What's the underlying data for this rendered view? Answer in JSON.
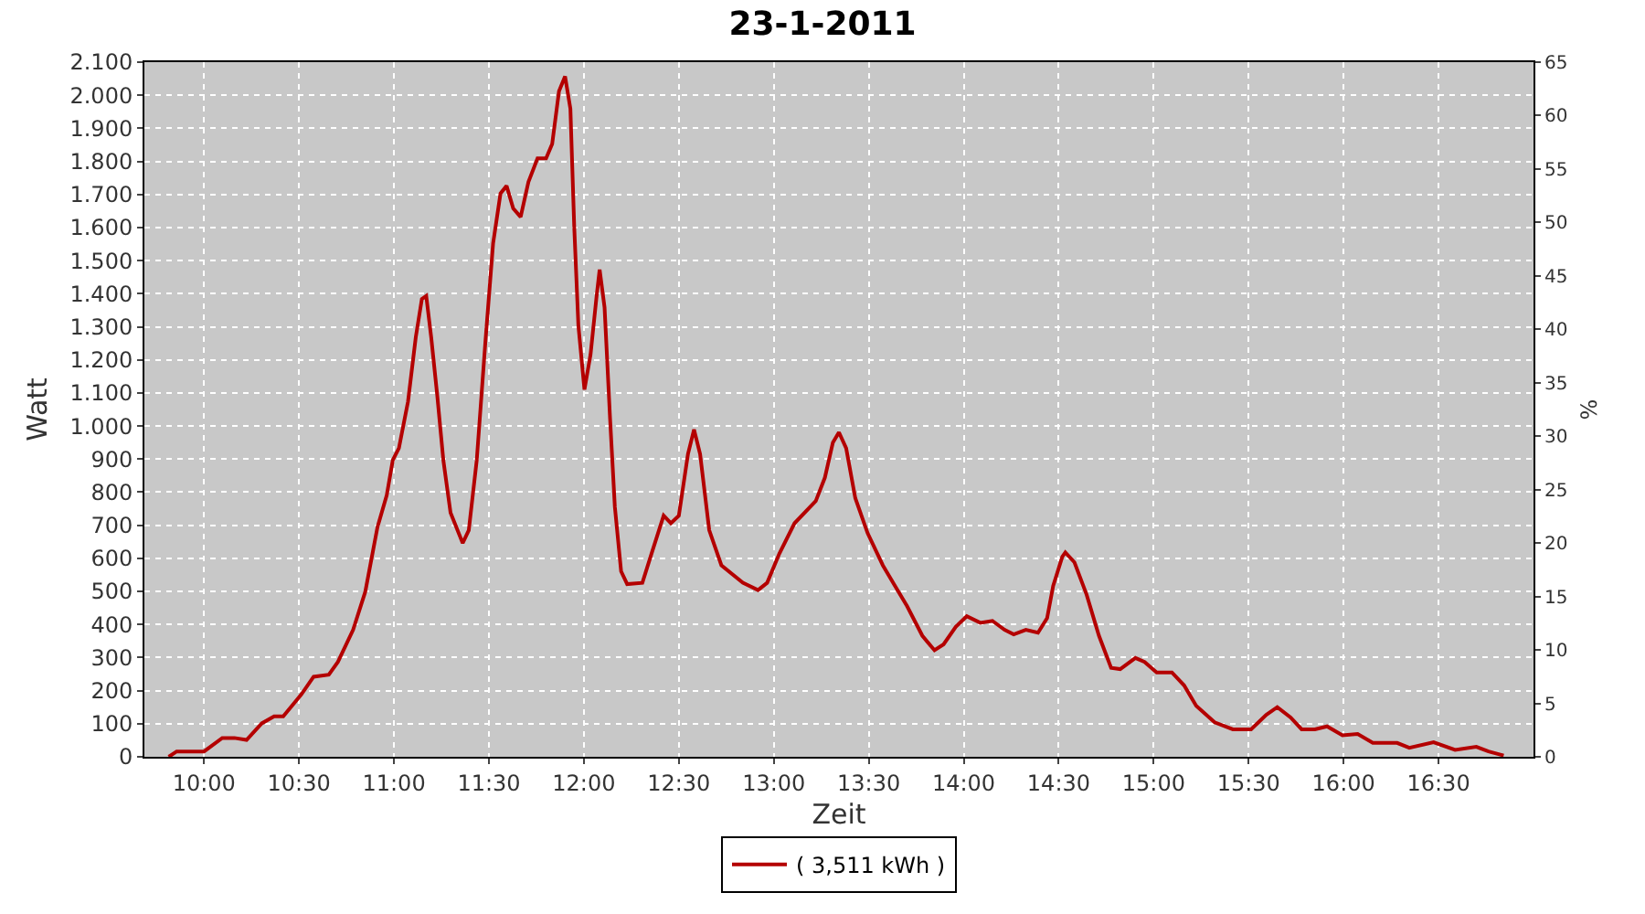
{
  "chart_data": {
    "type": "line",
    "title": "23-1-2011",
    "xlabel": "Zeit",
    "ylabel": "Watt",
    "y2label": "%",
    "x": [
      9.814,
      9.856,
      10.0,
      10.096,
      10.16,
      10.224,
      10.304,
      10.369,
      10.417,
      10.513,
      10.577,
      10.657,
      10.705,
      10.785,
      10.849,
      10.913,
      10.962,
      10.994,
      11.026,
      11.074,
      11.115,
      11.147,
      11.17,
      11.196,
      11.228,
      11.26,
      11.298,
      11.362,
      11.394,
      11.436,
      11.481,
      11.522,
      11.561,
      11.593,
      11.628,
      11.667,
      11.708,
      11.756,
      11.801,
      11.833,
      11.869,
      11.901,
      11.929,
      11.949,
      11.971,
      12.003,
      12.035,
      12.067,
      12.083,
      12.109,
      12.138,
      12.163,
      12.196,
      12.228,
      12.308,
      12.356,
      12.42,
      12.458,
      12.5,
      12.548,
      12.58,
      12.612,
      12.66,
      12.724,
      12.837,
      12.917,
      12.965,
      13.029,
      13.109,
      13.221,
      13.269,
      13.311,
      13.343,
      13.381,
      13.429,
      13.494,
      13.574,
      13.638,
      13.702,
      13.782,
      13.846,
      13.894,
      13.958,
      14.016,
      14.087,
      14.151,
      14.215,
      14.263,
      14.327,
      14.391,
      14.439,
      14.471,
      14.519,
      14.535,
      14.583,
      14.647,
      14.712,
      14.776,
      14.824,
      14.904,
      14.952,
      15.016,
      15.096,
      15.16,
      15.224,
      15.321,
      15.417,
      15.513,
      15.593,
      15.651,
      15.721,
      15.779,
      15.849,
      15.913,
      15.994,
      16.074,
      16.154,
      16.282,
      16.346,
      16.474,
      16.587,
      16.699,
      16.763,
      16.843
    ],
    "series": [
      {
        "name": "( 3,511 kWh )",
        "color": "#b40000",
        "values": [
          0,
          16,
          16,
          57,
          57,
          51,
          101,
          122,
          122,
          189,
          242,
          248,
          287,
          384,
          499,
          694,
          791,
          897,
          933,
          1074,
          1269,
          1384,
          1393,
          1269,
          1092,
          897,
          738,
          646,
          685,
          897,
          1251,
          1552,
          1703,
          1726,
          1658,
          1632,
          1738,
          1809,
          1809,
          1853,
          2012,
          2057,
          1959,
          1605,
          1304,
          1110,
          1216,
          1393,
          1473,
          1358,
          1021,
          756,
          561,
          522,
          526,
          614,
          729,
          706,
          729,
          915,
          989,
          915,
          685,
          579,
          526,
          504,
          526,
          614,
          706,
          773,
          844,
          950,
          981,
          933,
          782,
          676,
          579,
          517,
          455,
          366,
          322,
          340,
          393,
          425,
          405,
          411,
          384,
          370,
          384,
          375,
          419,
          517,
          605,
          618,
          588,
          490,
          366,
          269,
          265,
          299,
          287,
          255,
          255,
          216,
          154,
          104,
          83,
          83,
          127,
          150,
          119,
          83,
          83,
          92,
          65,
          69,
          42,
          42,
          27,
          44,
          21,
          30,
          16,
          4
        ]
      }
    ],
    "xlim": [
      9.686,
      17.0
    ],
    "xticks": [
      {
        "value": 10,
        "label": "10:00"
      },
      {
        "value": 10.5,
        "label": "10:30"
      },
      {
        "value": 11,
        "label": "11:00"
      },
      {
        "value": 11.5,
        "label": "11:30"
      },
      {
        "value": 12,
        "label": "12:00"
      },
      {
        "value": 12.5,
        "label": "12:30"
      },
      {
        "value": 13,
        "label": "13:00"
      },
      {
        "value": 13.5,
        "label": "13:30"
      },
      {
        "value": 14,
        "label": "14:00"
      },
      {
        "value": 14.5,
        "label": "14:30"
      },
      {
        "value": 15,
        "label": "15:00"
      },
      {
        "value": 15.5,
        "label": "15:30"
      },
      {
        "value": 16,
        "label": "16:00"
      },
      {
        "value": 16.5,
        "label": "16:30"
      }
    ],
    "ylim": [
      0,
      2100
    ],
    "yticks": [
      0,
      100,
      200,
      300,
      400,
      500,
      600,
      700,
      800,
      900,
      {
        "value": 1000,
        "label": "1.000"
      },
      {
        "value": 1100,
        "label": "1.100"
      },
      {
        "value": 1200,
        "label": "1.200"
      },
      {
        "value": 1300,
        "label": "1.300"
      },
      {
        "value": 1400,
        "label": "1.400"
      },
      {
        "value": 1500,
        "label": "1.500"
      },
      {
        "value": 1600,
        "label": "1.600"
      },
      {
        "value": 1700,
        "label": "1.700"
      },
      {
        "value": 1800,
        "label": "1.800"
      },
      {
        "value": 1900,
        "label": "1.900"
      },
      {
        "value": 2000,
        "label": "2.000"
      },
      {
        "value": 2100,
        "label": "2.100"
      }
    ],
    "y2lim": [
      0,
      65
    ],
    "y2ticks": [
      0,
      5,
      10,
      15,
      20,
      25,
      30,
      35,
      40,
      45,
      50,
      55,
      60,
      65
    ],
    "grid": true,
    "legend": "bottom",
    "marker": "none",
    "line_style": "solid"
  }
}
